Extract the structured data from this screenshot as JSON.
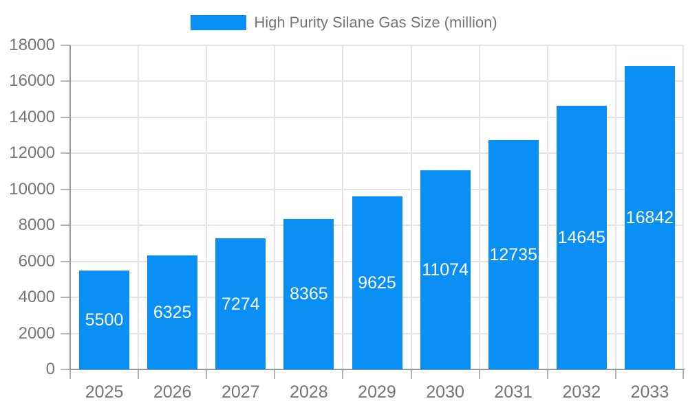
{
  "chart_data": {
    "type": "bar",
    "title": "High Purity Silane Gas Size (million)",
    "legend_position": "top",
    "categories": [
      "2025",
      "2026",
      "2027",
      "2028",
      "2029",
      "2030",
      "2031",
      "2032",
      "2033"
    ],
    "values": [
      5500,
      6325,
      7274,
      8365,
      9625,
      11074,
      12735,
      14645,
      16842
    ],
    "value_labels_inside_bars": true,
    "xlabel": "",
    "ylabel": "",
    "ylim": [
      0,
      18000
    ],
    "yticks": [
      0,
      2000,
      4000,
      6000,
      8000,
      10000,
      12000,
      14000,
      16000,
      18000
    ],
    "grid": true,
    "colors": {
      "bar": "#0a90f5",
      "bar_value_text": "#ffffff",
      "axis_text": "#757575",
      "axis_line": "#999999",
      "tick_mark": "#b3b3b3",
      "gridline": "#e3e3e3",
      "background": "#ffffff"
    }
  }
}
